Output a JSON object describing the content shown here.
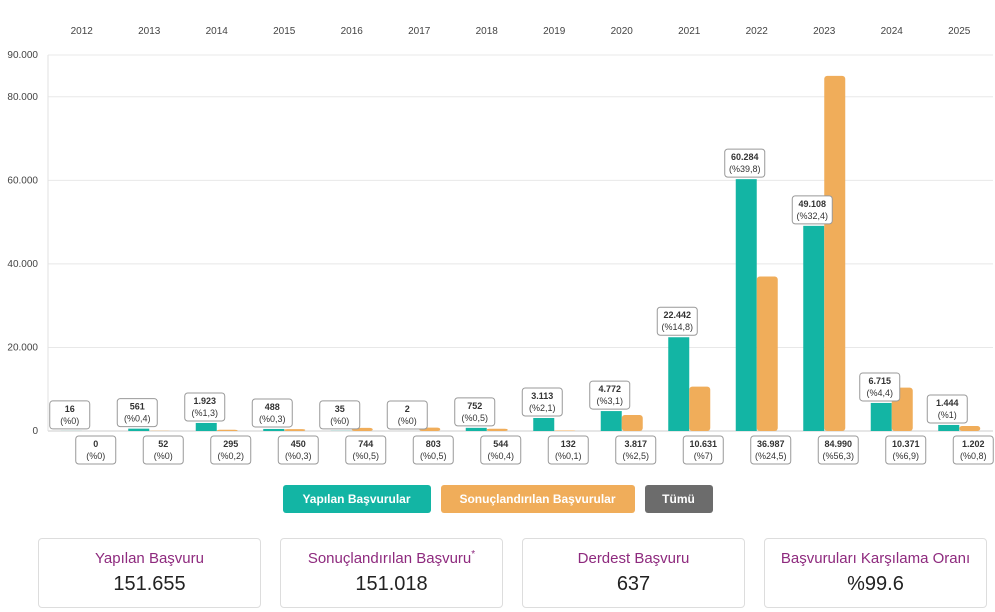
{
  "chart_data": {
    "type": "bar",
    "categories": [
      "2012",
      "2013",
      "2014",
      "2015",
      "2016",
      "2017",
      "2018",
      "2019",
      "2020",
      "2021",
      "2022",
      "2023",
      "2024",
      "2025"
    ],
    "ylim": [
      0,
      90000
    ],
    "yticks": [
      {
        "value": 0,
        "label": "0"
      },
      {
        "value": 20000,
        "label": "20.000"
      },
      {
        "value": 40000,
        "label": "40.000"
      },
      {
        "value": 60000,
        "label": "60.000"
      },
      {
        "value": 80000,
        "label": "80.000"
      },
      {
        "value": 90000,
        "label": "90.000"
      }
    ],
    "series": [
      {
        "name": "Yapılan Başvurular",
        "color": "#13b5a4",
        "values": [
          16,
          561,
          1923,
          488,
          35,
          2,
          752,
          3113,
          4772,
          22442,
          60284,
          49108,
          6715,
          1444
        ],
        "labels": [
          "16",
          "561",
          "1.923",
          "488",
          "35",
          "2",
          "752",
          "3.113",
          "4.772",
          "22.442",
          "60.284",
          "49.108",
          "6.715",
          "1.444"
        ],
        "pct": [
          "(%0)",
          "(%0,4)",
          "(%1,3)",
          "(%0,3)",
          "(%0)",
          "(%0)",
          "(%0,5)",
          "(%2,1)",
          "(%3,1)",
          "(%14,8)",
          "(%39,8)",
          "(%32,4)",
          "(%4,4)",
          "(%1)"
        ]
      },
      {
        "name": "Sonuçlandırılan Başvurular",
        "color": "#f0ad5a",
        "values": [
          0,
          52,
          295,
          450,
          744,
          803,
          544,
          132,
          3817,
          10631,
          36987,
          84990,
          10371,
          1202
        ],
        "labels": [
          "0",
          "52",
          "295",
          "450",
          "744",
          "803",
          "544",
          "132",
          "3.817",
          "10.631",
          "36.987",
          "84.990",
          "10.371",
          "1.202"
        ],
        "pct": [
          "(%0)",
          "(%0)",
          "(%0,2)",
          "(%0,3)",
          "(%0,5)",
          "(%0,5)",
          "(%0,4)",
          "(%0,1)",
          "(%2,5)",
          "(%7)",
          "(%24,5)",
          "(%56,3)",
          "(%6,9)",
          "(%0,8)"
        ]
      }
    ],
    "grid": true
  },
  "legend": {
    "made": "Yapılan Başvurular",
    "concluded": "Sonuçlandırılan Başvurular",
    "all": "Tümü"
  },
  "stats": [
    {
      "title": "Yapılan Başvuru",
      "star": "",
      "value": "151.655"
    },
    {
      "title": "Sonuçlandırılan Başvuru",
      "star": "*",
      "value": "151.018"
    },
    {
      "title": "Derdest Başvuru",
      "star": "",
      "value": "637"
    },
    {
      "title": "Başvuruları Karşılama Oranı",
      "star": "",
      "value": "%99.6"
    }
  ]
}
